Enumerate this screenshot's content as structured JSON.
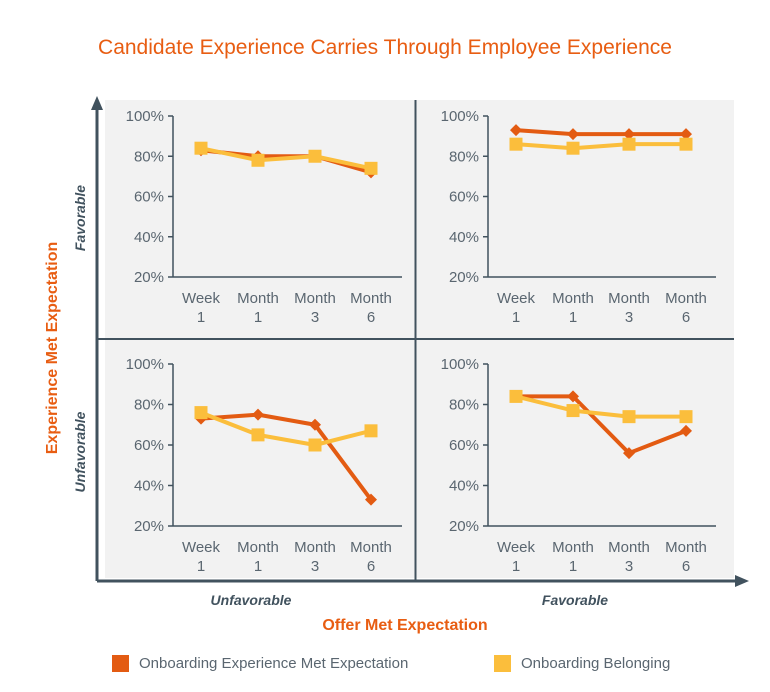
{
  "title": "Candidate Experience Carries Through Employee Experience",
  "colors": {
    "series1": "#E35B12",
    "series2": "#FBBE3C",
    "axis": "#41525E",
    "panel_bg": "#F2F2F2",
    "text": "#5A6670",
    "accent": "#E85D12"
  },
  "axes": {
    "y_title": "Experience Met Expectation",
    "x_title": "Offer Met Expectation",
    "y_quadrant_labels": [
      "Favorable",
      "Unfavorable"
    ],
    "x_quadrant_labels": [
      "Unfavorable",
      "Favorable"
    ]
  },
  "legend": [
    {
      "label": "Onboarding Experience Met Expectation",
      "color": "#E35B12"
    },
    {
      "label": "Onboarding Belonging",
      "color": "#FBBE3C"
    }
  ],
  "chart_data": [
    {
      "type": "line",
      "panel": "top-left",
      "categories": [
        [
          "Week",
          "1"
        ],
        [
          "Month",
          "1"
        ],
        [
          "Month",
          "3"
        ],
        [
          "Month",
          "6"
        ]
      ],
      "ylim": [
        20,
        100
      ],
      "yticks": [
        "20%",
        "40%",
        "60%",
        "80%",
        "100%"
      ],
      "series": [
        {
          "name": "Onboarding Experience Met Expectation",
          "values": [
            83,
            80,
            80,
            72
          ]
        },
        {
          "name": "Onboarding Belonging",
          "values": [
            84,
            78,
            80,
            74
          ]
        }
      ]
    },
    {
      "type": "line",
      "panel": "top-right",
      "categories": [
        [
          "Week",
          "1"
        ],
        [
          "Month",
          "1"
        ],
        [
          "Month",
          "3"
        ],
        [
          "Month",
          "6"
        ]
      ],
      "ylim": [
        20,
        100
      ],
      "yticks": [
        "20%",
        "40%",
        "60%",
        "80%",
        "100%"
      ],
      "series": [
        {
          "name": "Onboarding Experience Met Expectation",
          "values": [
            93,
            91,
            91,
            91
          ]
        },
        {
          "name": "Onboarding Belonging",
          "values": [
            86,
            84,
            86,
            86
          ]
        }
      ]
    },
    {
      "type": "line",
      "panel": "bottom-left",
      "categories": [
        [
          "Week",
          "1"
        ],
        [
          "Month",
          "1"
        ],
        [
          "Month",
          "3"
        ],
        [
          "Month",
          "6"
        ]
      ],
      "ylim": [
        20,
        100
      ],
      "yticks": [
        "20%",
        "40%",
        "60%",
        "80%",
        "100%"
      ],
      "series": [
        {
          "name": "Onboarding Experience Met Expectation",
          "values": [
            73,
            75,
            70,
            33
          ]
        },
        {
          "name": "Onboarding Belonging",
          "values": [
            76,
            65,
            60,
            67
          ]
        }
      ]
    },
    {
      "type": "line",
      "panel": "bottom-right",
      "categories": [
        [
          "Week",
          "1"
        ],
        [
          "Month",
          "1"
        ],
        [
          "Month",
          "3"
        ],
        [
          "Month",
          "6"
        ]
      ],
      "ylim": [
        20,
        100
      ],
      "yticks": [
        "20%",
        "40%",
        "60%",
        "80%",
        "100%"
      ],
      "series": [
        {
          "name": "Onboarding Experience Met Expectation",
          "values": [
            84,
            84,
            56,
            67
          ]
        },
        {
          "name": "Onboarding Belonging",
          "values": [
            84,
            77,
            74,
            74
          ]
        }
      ]
    }
  ]
}
